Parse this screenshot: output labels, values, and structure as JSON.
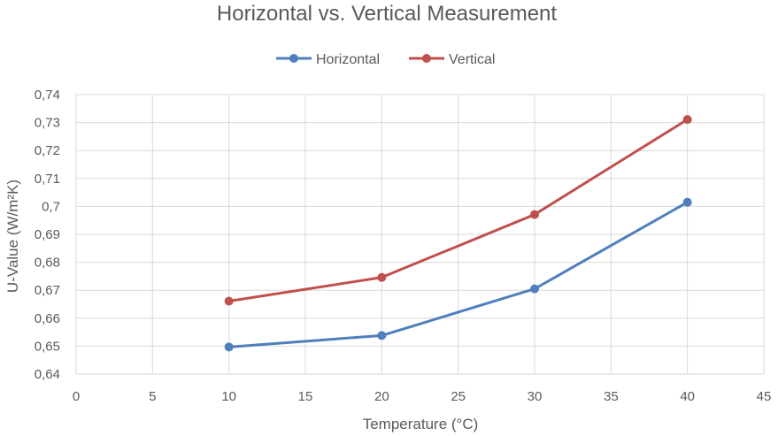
{
  "chart_data": {
    "type": "line",
    "title": "Horizontal vs. Vertical Measurement",
    "xlabel": "Temperature (°C)",
    "ylabel": "U-Value (W/m²K)",
    "xlim": [
      0,
      45
    ],
    "ylim": [
      0.64,
      0.74
    ],
    "xticks": [
      0,
      5,
      10,
      15,
      20,
      25,
      30,
      35,
      40,
      45
    ],
    "yticks": [
      0.64,
      0.65,
      0.66,
      0.67,
      0.68,
      0.69,
      0.7,
      0.71,
      0.72,
      0.73,
      0.74
    ],
    "xtick_labels": [
      "0",
      "5",
      "10",
      "15",
      "20",
      "25",
      "30",
      "35",
      "40",
      "45"
    ],
    "ytick_labels": [
      "0,64",
      "0,65",
      "0,66",
      "0,67",
      "0,68",
      "0,69",
      "0,7",
      "0,71",
      "0,72",
      "0,73",
      "0,74"
    ],
    "grid": true,
    "legend_position": "top-center",
    "series": [
      {
        "name": "Horizontal",
        "color": "#4f7fbd",
        "x": [
          10,
          20,
          30,
          40
        ],
        "y": [
          0.6497,
          0.6538,
          0.6705,
          0.7015
        ]
      },
      {
        "name": "Vertical",
        "color": "#c0504d",
        "x": [
          10,
          20,
          30,
          40
        ],
        "y": [
          0.6661,
          0.6746,
          0.6971,
          0.7311
        ]
      }
    ]
  }
}
